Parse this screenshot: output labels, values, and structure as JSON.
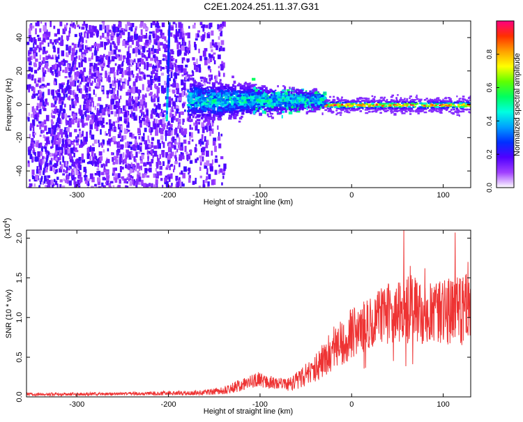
{
  "title": "C2E1.2024.251.11.37.G31",
  "chart_data": [
    {
      "type": "heatmap",
      "xlabel": "Height of straight line (km)",
      "ylabel": "Frequency (Hz)",
      "xlim": [
        -355,
        130
      ],
      "ylim": [
        -50,
        50
      ],
      "xticks": [
        -300,
        -200,
        -100,
        0,
        100
      ],
      "yticks": [
        -40,
        -20,
        0,
        20,
        40
      ],
      "colorbar": {
        "label": "Normalized spectral amplitude",
        "range": [
          0,
          1
        ],
        "ticks": [
          "0.0",
          "0.2",
          "0.4",
          "0.6",
          "0.8"
        ],
        "colors": [
          "#ffffff",
          "#a040ff",
          "#5000ff",
          "#0030ff",
          "#00a0ff",
          "#00ffe0",
          "#00ff60",
          "#60ff00",
          "#ffff00",
          "#ffa000",
          "#ff3000",
          "#ff0080"
        ]
      },
      "features": {
        "streak_x": [
          -200,
          -195
        ],
        "noise_region_x": [
          -355,
          -140
        ],
        "band_region_x": [
          -180,
          -30
        ],
        "carrier_region_x": [
          -30,
          130
        ],
        "carrier_freq": 0
      }
    },
    {
      "type": "line",
      "xlabel": "Height of straight line (km)",
      "ylabel": "SNR (10 * v/v)",
      "multiplier": "(x10",
      "multiplier_exp": "4",
      "multiplier_close": ")",
      "xlim": [
        -355,
        130
      ],
      "ylim": [
        0,
        2.1
      ],
      "xticks": [
        -300,
        -200,
        -100,
        0,
        100
      ],
      "yticks": [
        "0.0",
        "0.5",
        "1.0",
        "1.5",
        "2.0"
      ],
      "color": "#ee3333",
      "envelope": {
        "x": [
          -355,
          -250,
          -170,
          -140,
          -120,
          -100,
          -85,
          -70,
          -60,
          -50,
          -40,
          -30,
          -20,
          -10,
          0,
          10,
          20,
          30,
          40,
          50,
          60,
          70,
          80,
          90,
          100,
          110,
          120,
          130
        ],
        "mean": [
          0.03,
          0.04,
          0.05,
          0.08,
          0.15,
          0.22,
          0.17,
          0.15,
          0.2,
          0.28,
          0.35,
          0.45,
          0.6,
          0.7,
          0.8,
          0.85,
          0.95,
          1.0,
          1.05,
          1.1,
          1.1,
          1.1,
          1.05,
          1.05,
          1.1,
          1.05,
          1.1,
          1.1
        ],
        "spread": [
          0.02,
          0.02,
          0.03,
          0.05,
          0.08,
          0.1,
          0.08,
          0.08,
          0.12,
          0.15,
          0.18,
          0.25,
          0.28,
          0.3,
          0.32,
          0.32,
          0.35,
          0.35,
          0.38,
          0.4,
          0.45,
          0.42,
          0.4,
          0.38,
          0.42,
          0.42,
          0.45,
          0.45
        ]
      },
      "peaks": [
        {
          "x": 57,
          "y": 2.1
        },
        {
          "x": 113,
          "y": 2.07
        },
        {
          "x": 127,
          "y": 1.7
        },
        {
          "x": 80,
          "y": 1.62
        },
        {
          "x": 64,
          "y": 1.65
        }
      ]
    }
  ]
}
